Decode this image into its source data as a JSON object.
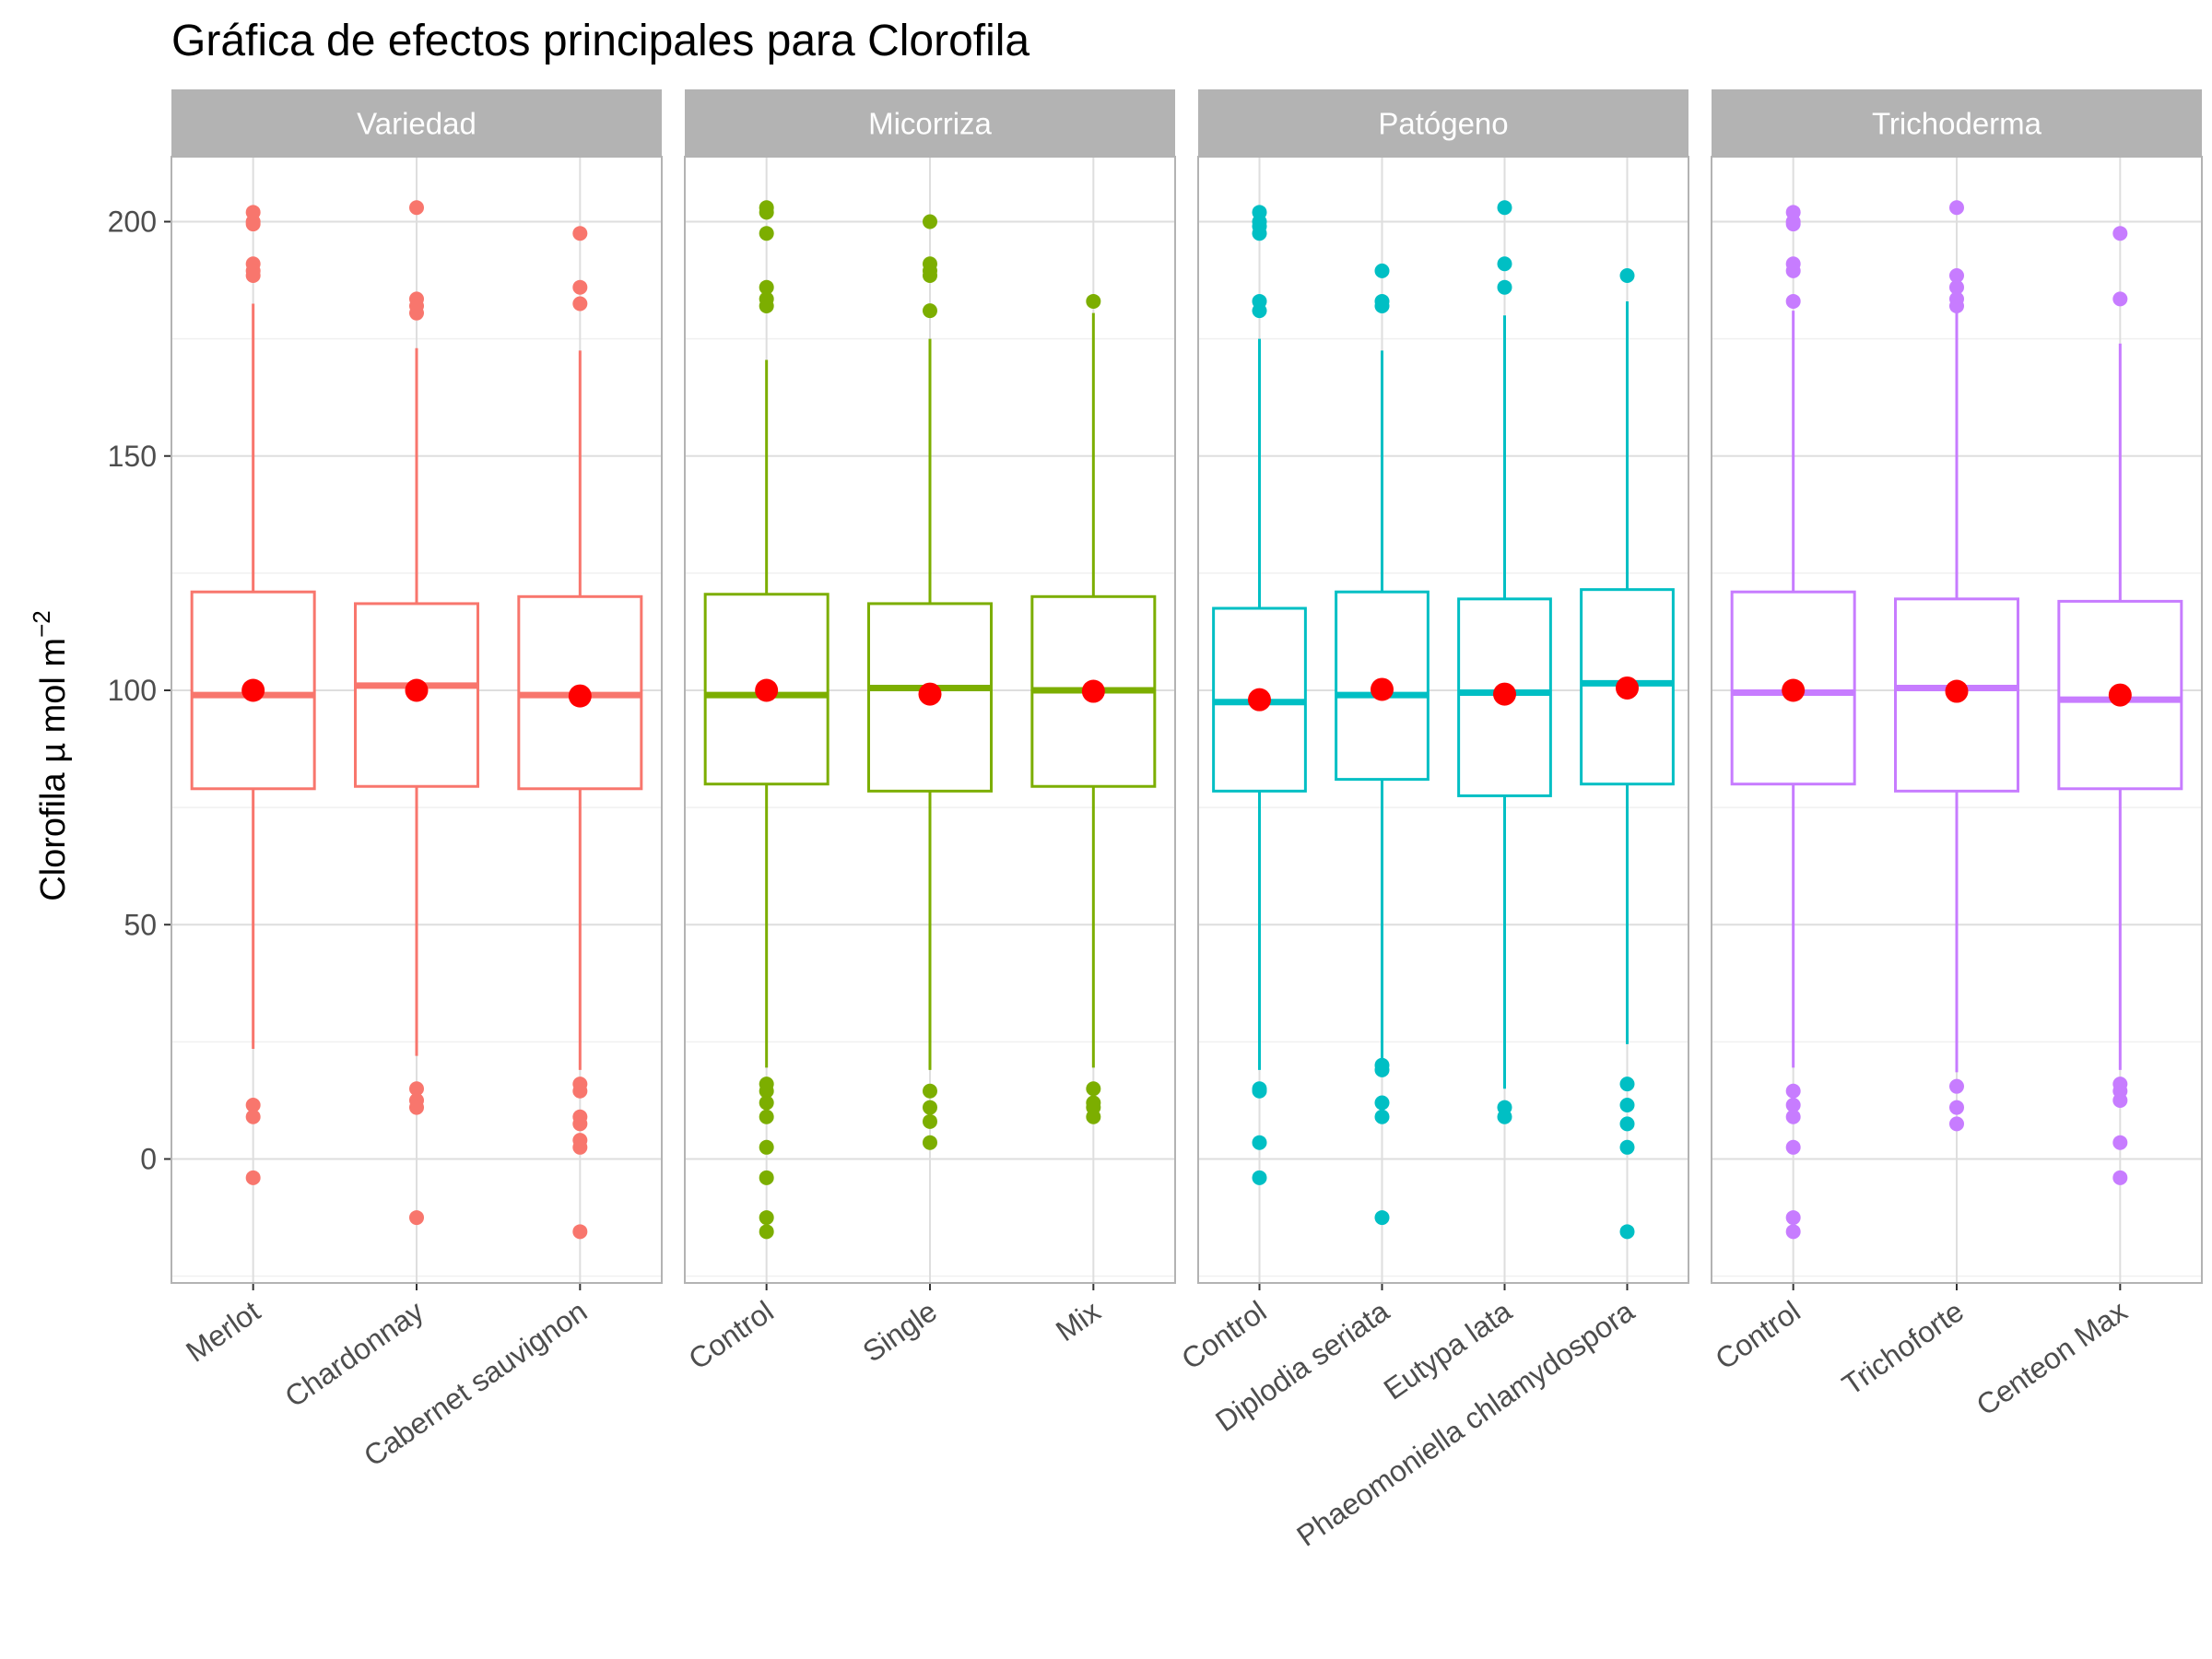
{
  "chart_data": {
    "type": "box",
    "title": "Gráfica de efectos principales para Clorofila",
    "ylabel_main": "Clorofila µ mol m",
    "ylabel_sup": "−2",
    "ylim": [
      -27,
      213
    ],
    "yticks": [
      0,
      50,
      100,
      150,
      200
    ],
    "mean_color": "#ff0000",
    "panels": [
      {
        "name": "Variedad",
        "color": "#f8766d",
        "groups": [
          {
            "label": "Merlot",
            "min": 23.5,
            "q1": 79,
            "median": 99,
            "q3": 121,
            "max": 182.5,
            "mean": 100,
            "outliers": [
              202,
              200,
              199.5,
              191,
              189.5,
              188.5,
              11.5,
              9,
              -4
            ]
          },
          {
            "label": "Chardonnay",
            "min": 22,
            "q1": 79.5,
            "median": 101,
            "q3": 118.5,
            "max": 173,
            "mean": 100,
            "outliers": [
              203,
              183.5,
              182,
              180.5,
              15,
              12.5,
              11,
              -12.5
            ]
          },
          {
            "label": "Cabernet sauvignon",
            "min": 19,
            "q1": 79,
            "median": 99,
            "q3": 120,
            "max": 172.5,
            "mean": 98.8,
            "outliers": [
              197.5,
              186,
              182.5,
              16,
              14.5,
              9,
              7.5,
              4,
              2.5,
              -15.5
            ]
          }
        ]
      },
      {
        "name": "Micorriza",
        "color": "#7cae00",
        "groups": [
          {
            "label": "Control",
            "min": 19.5,
            "q1": 80,
            "median": 99,
            "q3": 120.5,
            "max": 170.5,
            "mean": 100,
            "outliers": [
              203,
              202,
              197.5,
              186,
              183.5,
              182,
              16,
              14.5,
              12,
              9,
              2.5,
              -4,
              -12.5,
              -15.5
            ]
          },
          {
            "label": "Single",
            "min": 19,
            "q1": 78.5,
            "median": 100.5,
            "q3": 118.5,
            "max": 175,
            "mean": 99.2,
            "outliers": [
              200,
              191,
              189.5,
              188.5,
              181,
              14.5,
              11,
              8,
              3.5
            ]
          },
          {
            "label": "Mix",
            "min": 19.5,
            "q1": 79.5,
            "median": 100,
            "q3": 120,
            "max": 180.5,
            "mean": 99.8,
            "outliers": [
              183,
              15,
              12,
              11,
              9
            ]
          }
        ]
      },
      {
        "name": "Patógeno",
        "color": "#00bfc4",
        "groups": [
          {
            "label": "Control",
            "min": 19,
            "q1": 78.5,
            "median": 97.5,
            "q3": 117.5,
            "max": 175,
            "mean": 98,
            "outliers": [
              202,
              200,
              199,
              197.5,
              183,
              181,
              15,
              14.5,
              3.5,
              -4
            ]
          },
          {
            "label": "Diplodia seriata",
            "min": 21.5,
            "q1": 81,
            "median": 99,
            "q3": 121,
            "max": 172.5,
            "mean": 100.2,
            "outliers": [
              189.5,
              183,
              182,
              20,
              19,
              12,
              9,
              -12.5
            ]
          },
          {
            "label": "Eutypa lata",
            "min": 15,
            "q1": 77.5,
            "median": 99.5,
            "q3": 119.5,
            "max": 180,
            "mean": 99.2,
            "outliers": [
              203,
              191,
              186,
              11,
              9
            ]
          },
          {
            "label": "Phaeomoniella chlamydospora",
            "min": 24.5,
            "q1": 80,
            "median": 101.5,
            "q3": 121.5,
            "max": 183,
            "mean": 100.5,
            "outliers": [
              188.5,
              16,
              11.5,
              7.5,
              2.5,
              -15.5
            ]
          }
        ]
      },
      {
        "name": "Trichoderma",
        "color": "#c77cff",
        "groups": [
          {
            "label": "Control",
            "min": 19.5,
            "q1": 80,
            "median": 99.5,
            "q3": 121,
            "max": 181,
            "mean": 100,
            "outliers": [
              202,
              200,
              199.5,
              191,
              189.5,
              183,
              14.5,
              11.5,
              9,
              2.5,
              -12.5,
              -15.5
            ]
          },
          {
            "label": "Trichoforte",
            "min": 18.5,
            "q1": 78.5,
            "median": 100.5,
            "q3": 119.5,
            "max": 180.5,
            "mean": 99.8,
            "outliers": [
              203,
              188.5,
              186,
              183.5,
              182,
              15.5,
              11,
              7.5
            ]
          },
          {
            "label": "Centeon Max",
            "min": 19,
            "q1": 79,
            "median": 98,
            "q3": 119,
            "max": 174,
            "mean": 99,
            "outliers": [
              197.5,
              183.5,
              16,
              14.5,
              12.5,
              3.5,
              -4
            ]
          }
        ]
      }
    ]
  }
}
